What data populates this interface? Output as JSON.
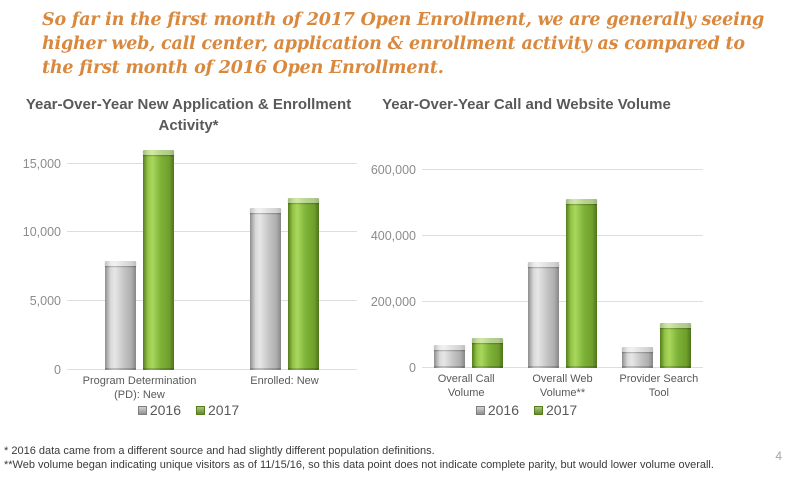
{
  "headline": {
    "lines": [
      "So far in the first month of 2017 Open Enrollment, we are generally seeing",
      "higher web, call center, application & enrollment activity as compared to",
      "the first month of 2016 Open Enrollment."
    ]
  },
  "colors": {
    "headline_orange": "#d9883d",
    "title_gray": "#595959",
    "tick_gray": "#8c8c8c",
    "gridline_gray": "#dedede",
    "bar_gray_2016": "#bdbdbd",
    "bar_green_2017": "#76a92f"
  },
  "chart_data": [
    {
      "type": "bar",
      "title": "Year-Over-Year New Application & Enrollment Activity*",
      "categories": [
        "Program Determination (PD): New",
        "Enrolled: New"
      ],
      "series": [
        {
          "name": "2016",
          "color": "#bdbdbd",
          "values": [
            7900,
            11800
          ]
        },
        {
          "name": "2017",
          "color": "#76a92f",
          "values": [
            16000,
            12500
          ]
        }
      ],
      "yticks": [
        0,
        5000,
        10000,
        15000
      ],
      "ylim": [
        0,
        16500
      ],
      "xlabel": "",
      "ylabel": "",
      "grid": true,
      "legend_position": "bottom"
    },
    {
      "type": "bar",
      "title": "Year-Over-Year Call and Website Volume",
      "categories": [
        "Overall Call Volume",
        "Overall Web Volume**",
        "Provider Search Tool"
      ],
      "series": [
        {
          "name": "2016",
          "color": "#bdbdbd",
          "values": [
            70000,
            320000,
            65000
          ]
        },
        {
          "name": "2017",
          "color": "#76a92f",
          "values": [
            90000,
            510000,
            135000
          ]
        }
      ],
      "yticks": [
        0,
        200000,
        400000,
        600000
      ],
      "ylim": [
        0,
        620000
      ],
      "xlabel": "",
      "ylabel": "",
      "grid": true,
      "legend_position": "bottom"
    }
  ],
  "footnotes": [
    "* 2016 data came from a different source and had slightly different population definitions.",
    "**Web volume began indicating unique visitors as of 11/15/16, so this data point does not indicate complete parity, but would lower volume overall."
  ],
  "page_number": "4"
}
